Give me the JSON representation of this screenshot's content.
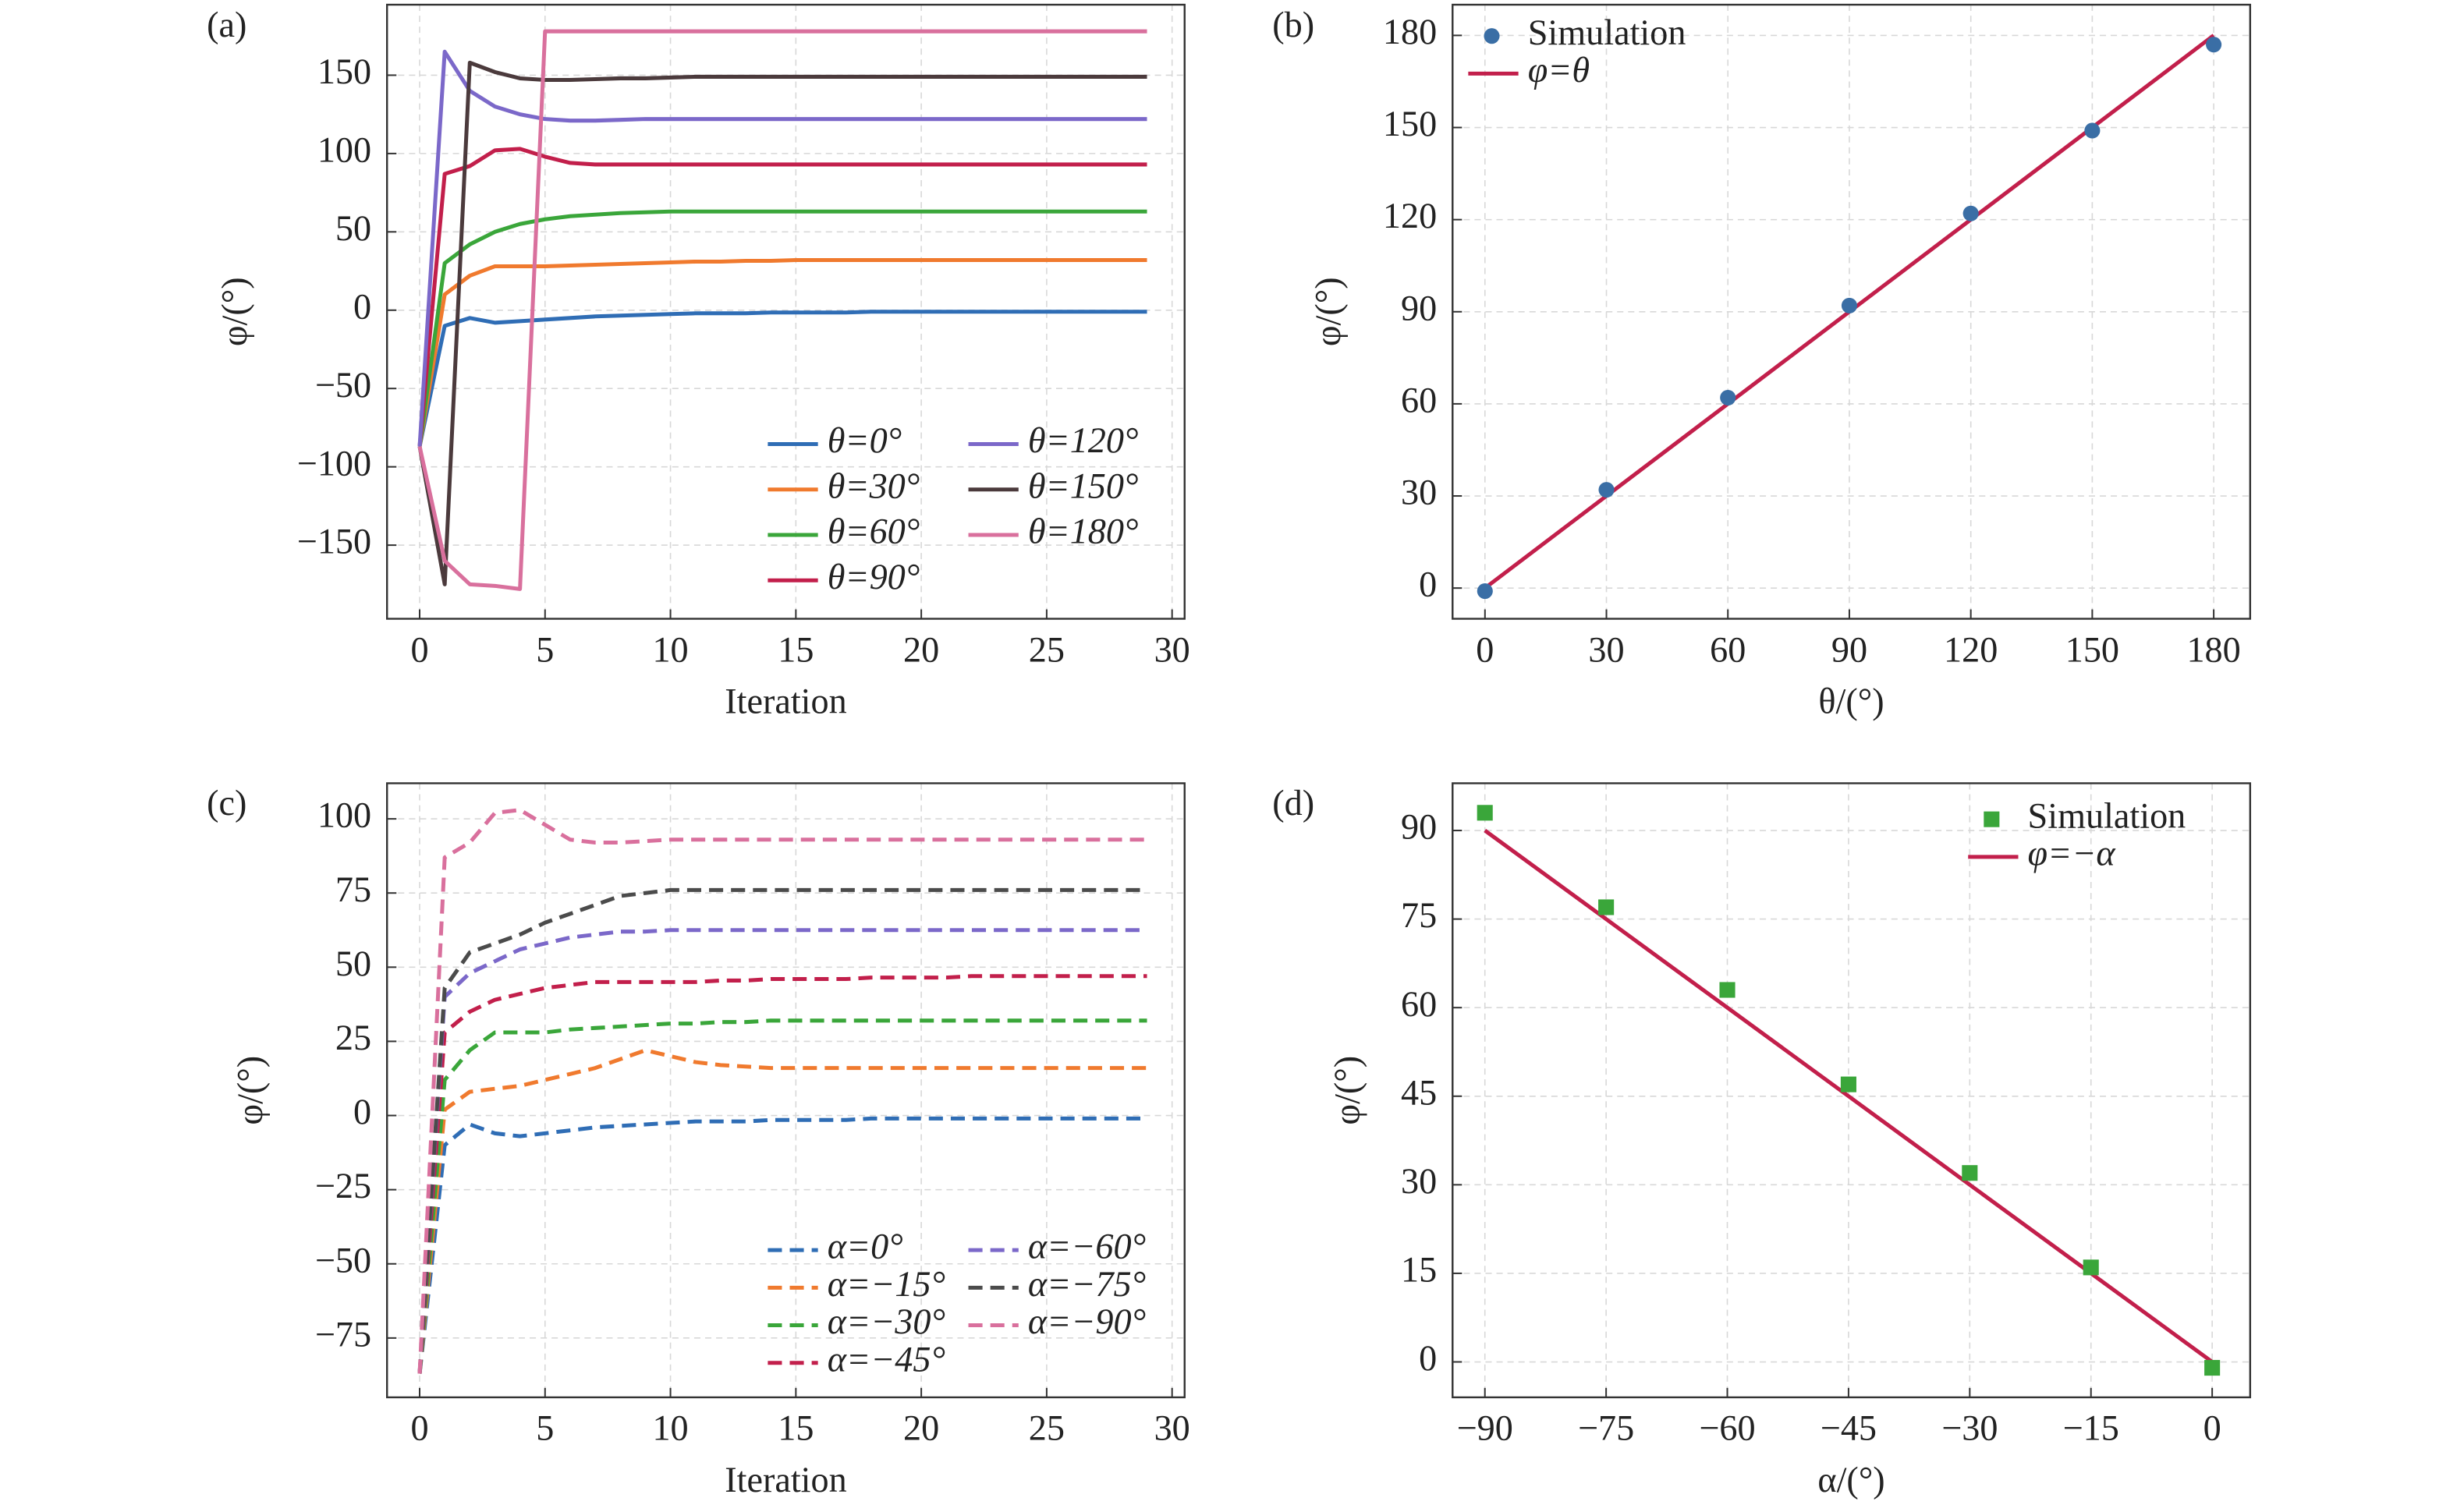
{
  "chart_data": [
    {
      "type": "line",
      "label": "(a)",
      "x_label": "Iteration",
      "y_label": "φ/(°)",
      "grid": true,
      "legend": "lower right",
      "legend_columns": 2,
      "line_style": "solid",
      "xlim": [
        -1.3,
        30.5
      ],
      "ylim": [
        -197,
        195
      ],
      "xticks": [
        0,
        5,
        10,
        15,
        20,
        25,
        30
      ],
      "yticks": [
        {
          "value": -150,
          "label": "−150"
        },
        {
          "value": -100,
          "label": "−100"
        },
        {
          "value": -50,
          "label": "−50"
        },
        0,
        50,
        100,
        150
      ],
      "x": [
        0,
        1,
        2,
        3,
        4,
        5,
        6,
        7,
        8,
        9,
        10,
        11,
        12,
        13,
        14,
        15,
        16,
        17,
        18,
        19,
        20,
        21,
        22,
        23,
        24,
        25,
        26,
        27,
        28,
        29
      ],
      "series": [
        {
          "name": "θ=0°",
          "color": "#2f6db5",
          "values": [
            -87,
            -10,
            -5,
            -8,
            -7,
            -6,
            -5,
            -4,
            -3.5,
            -3,
            -2.5,
            -2,
            -2,
            -2,
            -1.5,
            -1.5,
            -1.5,
            -1.5,
            -1,
            -1,
            -1,
            -1,
            -1,
            -1,
            -1,
            -1,
            -1,
            -1,
            -1,
            -1
          ]
        },
        {
          "name": "θ=30°",
          "color": "#f07a2e",
          "values": [
            -87,
            10,
            22,
            28,
            28,
            28,
            28.5,
            29,
            29.5,
            30,
            30.5,
            31,
            31,
            31.5,
            31.5,
            32,
            32,
            32,
            32,
            32,
            32,
            32,
            32,
            32,
            32,
            32,
            32,
            32,
            32,
            32
          ]
        },
        {
          "name": "θ=60°",
          "color": "#3aa63a",
          "values": [
            -87,
            30,
            42,
            50,
            55,
            58,
            60,
            61,
            62,
            62.5,
            63,
            63,
            63,
            63,
            63,
            63,
            63,
            63,
            63,
            63,
            63,
            63,
            63,
            63,
            63,
            63,
            63,
            63,
            63,
            63
          ]
        },
        {
          "name": "θ=90°",
          "color": "#c21f4b",
          "values": [
            -87,
            87,
            92,
            102,
            103,
            98,
            94,
            93,
            93,
            93,
            93,
            93,
            93,
            93,
            93,
            93,
            93,
            93,
            93,
            93,
            93,
            93,
            93,
            93,
            93,
            93,
            93,
            93,
            93,
            93
          ]
        },
        {
          "name": "θ=120°",
          "color": "#7b68c9",
          "values": [
            -87,
            165,
            140,
            130,
            125,
            122,
            121,
            121,
            121.5,
            122,
            122,
            122,
            122,
            122,
            122,
            122,
            122,
            122,
            122,
            122,
            122,
            122,
            122,
            122,
            122,
            122,
            122,
            122,
            122,
            122
          ]
        },
        {
          "name": "θ=150°",
          "color": "#4b3a3c",
          "values": [
            -87,
            -175,
            158,
            152,
            148,
            147,
            147,
            147.5,
            148,
            148,
            148.5,
            149,
            149,
            149,
            149,
            149,
            149,
            149,
            149,
            149,
            149,
            149,
            149,
            149,
            149,
            149,
            149,
            149,
            149,
            149
          ]
        },
        {
          "name": "θ=180°",
          "color": "#d9709d",
          "values": [
            -87,
            -160,
            -175,
            -176,
            -178,
            178,
            178,
            178,
            178,
            178,
            178,
            178,
            178,
            178,
            178,
            178,
            178,
            178,
            178,
            178,
            178,
            178,
            178,
            178,
            178,
            178,
            178,
            178,
            178,
            178
          ]
        }
      ]
    },
    {
      "type": "combo",
      "label": "(b)",
      "x_label": "θ/(°)",
      "y_label": "φ/(°)",
      "grid": true,
      "legend": "upper left",
      "xlim": [
        -8,
        189
      ],
      "ylim": [
        -10,
        190
      ],
      "xticks": [
        0,
        30,
        60,
        90,
        120,
        150,
        180
      ],
      "yticks": [
        0,
        30,
        60,
        90,
        120,
        150,
        180
      ],
      "x": [
        0,
        30,
        60,
        90,
        120,
        150,
        180
      ],
      "series": [
        {
          "name": "Simulation",
          "type": "scatter",
          "marker": "circle",
          "color": "#3a6ea5",
          "values": [
            -1,
            32,
            62,
            92,
            122,
            149,
            177
          ]
        },
        {
          "name": "φ=θ",
          "type": "line",
          "color": "#c21f4b",
          "values": [
            0,
            30,
            60,
            90,
            120,
            150,
            180
          ]
        }
      ]
    },
    {
      "type": "line",
      "label": "(c)",
      "x_label": "Iteration",
      "y_label": "φ/(°)",
      "grid": true,
      "legend": "lower right",
      "legend_columns": 2,
      "line_style": "dashed",
      "xlim": [
        -1.3,
        30.5
      ],
      "ylim": [
        -95,
        112
      ],
      "xticks": [
        0,
        5,
        10,
        15,
        20,
        25,
        30
      ],
      "yticks": [
        {
          "value": -75,
          "label": "−75"
        },
        {
          "value": -50,
          "label": "−50"
        },
        {
          "value": -25,
          "label": "−25"
        },
        0,
        25,
        50,
        75,
        100
      ],
      "x": [
        0,
        1,
        2,
        3,
        4,
        5,
        6,
        7,
        8,
        9,
        10,
        11,
        12,
        13,
        14,
        15,
        16,
        17,
        18,
        19,
        20,
        21,
        22,
        23,
        24,
        25,
        26,
        27,
        28,
        29
      ],
      "series": [
        {
          "name": "α=0°",
          "color": "#2f6db5",
          "values": [
            -87,
            -10,
            -3,
            -6,
            -7,
            -6,
            -5,
            -4,
            -3.5,
            -3,
            -2.5,
            -2,
            -2,
            -2,
            -1.5,
            -1.5,
            -1.5,
            -1.5,
            -1,
            -1,
            -1,
            -1,
            -1,
            -1,
            -1,
            -1,
            -1,
            -1,
            -1,
            -1
          ]
        },
        {
          "name": "α=−15°",
          "color": "#f07a2e",
          "values": [
            -87,
            2,
            8,
            9,
            10,
            12,
            14,
            16,
            19,
            22,
            20,
            18,
            17,
            16.5,
            16,
            16,
            16,
            16,
            16,
            16,
            16,
            16,
            16,
            16,
            16,
            16,
            16,
            16,
            16,
            16
          ]
        },
        {
          "name": "α=−30°",
          "color": "#3aa63a",
          "values": [
            -87,
            12,
            22,
            28,
            28,
            28,
            29,
            29.5,
            30,
            30.5,
            31,
            31,
            31.5,
            31.5,
            32,
            32,
            32,
            32,
            32,
            32,
            32,
            32,
            32,
            32,
            32,
            32,
            32,
            32,
            32,
            32
          ]
        },
        {
          "name": "α=−45°",
          "color": "#c21f4b",
          "values": [
            -87,
            28,
            35,
            39,
            41,
            43,
            44,
            45,
            45,
            45,
            45,
            45,
            45.5,
            45.5,
            46,
            46,
            46,
            46,
            46.5,
            46.5,
            46.5,
            46.5,
            47,
            47,
            47,
            47,
            47,
            47,
            47,
            47
          ]
        },
        {
          "name": "α=−60°",
          "color": "#7b68c9",
          "values": [
            -87,
            40,
            48,
            52,
            56,
            58,
            60,
            61,
            62,
            62,
            62.5,
            62.5,
            62.5,
            62.5,
            62.5,
            62.5,
            62.5,
            62.5,
            62.5,
            62.5,
            62.5,
            62.5,
            62.5,
            62.5,
            62.5,
            62.5,
            62.5,
            62.5,
            62.5,
            62.5
          ]
        },
        {
          "name": "α=−75°",
          "color": "#4b4b4b",
          "values": [
            -87,
            43,
            55,
            58,
            61,
            65,
            68,
            71,
            74,
            75,
            76,
            76,
            76,
            76,
            76,
            76,
            76,
            76,
            76,
            76,
            76,
            76,
            76,
            76,
            76,
            76,
            76,
            76,
            76,
            76
          ]
        },
        {
          "name": "α=−90°",
          "color": "#d9709d",
          "values": [
            -87,
            87,
            92,
            102,
            103,
            98,
            93,
            92,
            92,
            92.5,
            93,
            93,
            93,
            93,
            93,
            93,
            93,
            93,
            93,
            93,
            93,
            93,
            93,
            93,
            93,
            93,
            93,
            93,
            93,
            93
          ]
        }
      ]
    },
    {
      "type": "combo",
      "label": "(d)",
      "x_label": "α/(°)",
      "y_label": "φ/(°)",
      "grid": true,
      "legend": "upper right",
      "xlim": [
        -94,
        4.7
      ],
      "ylim": [
        -6,
        98
      ],
      "xticks": [
        {
          "value": -90,
          "label": "−90"
        },
        {
          "value": -75,
          "label": "−75"
        },
        {
          "value": -60,
          "label": "−60"
        },
        {
          "value": -45,
          "label": "−45"
        },
        {
          "value": -30,
          "label": "−30"
        },
        {
          "value": -15,
          "label": "−15"
        },
        0
      ],
      "yticks": [
        0,
        15,
        30,
        45,
        60,
        75,
        90
      ],
      "x": [
        -90,
        -75,
        -60,
        -45,
        -30,
        -15,
        0
      ],
      "series": [
        {
          "name": "Simulation",
          "type": "scatter",
          "marker": "square",
          "color": "#3aa63a",
          "values": [
            93,
            77,
            63,
            47,
            32,
            16,
            -1
          ]
        },
        {
          "name": "φ=−α",
          "type": "line",
          "color": "#c21f4b",
          "values": [
            90,
            75,
            60,
            45,
            30,
            15,
            0
          ]
        }
      ]
    }
  ]
}
